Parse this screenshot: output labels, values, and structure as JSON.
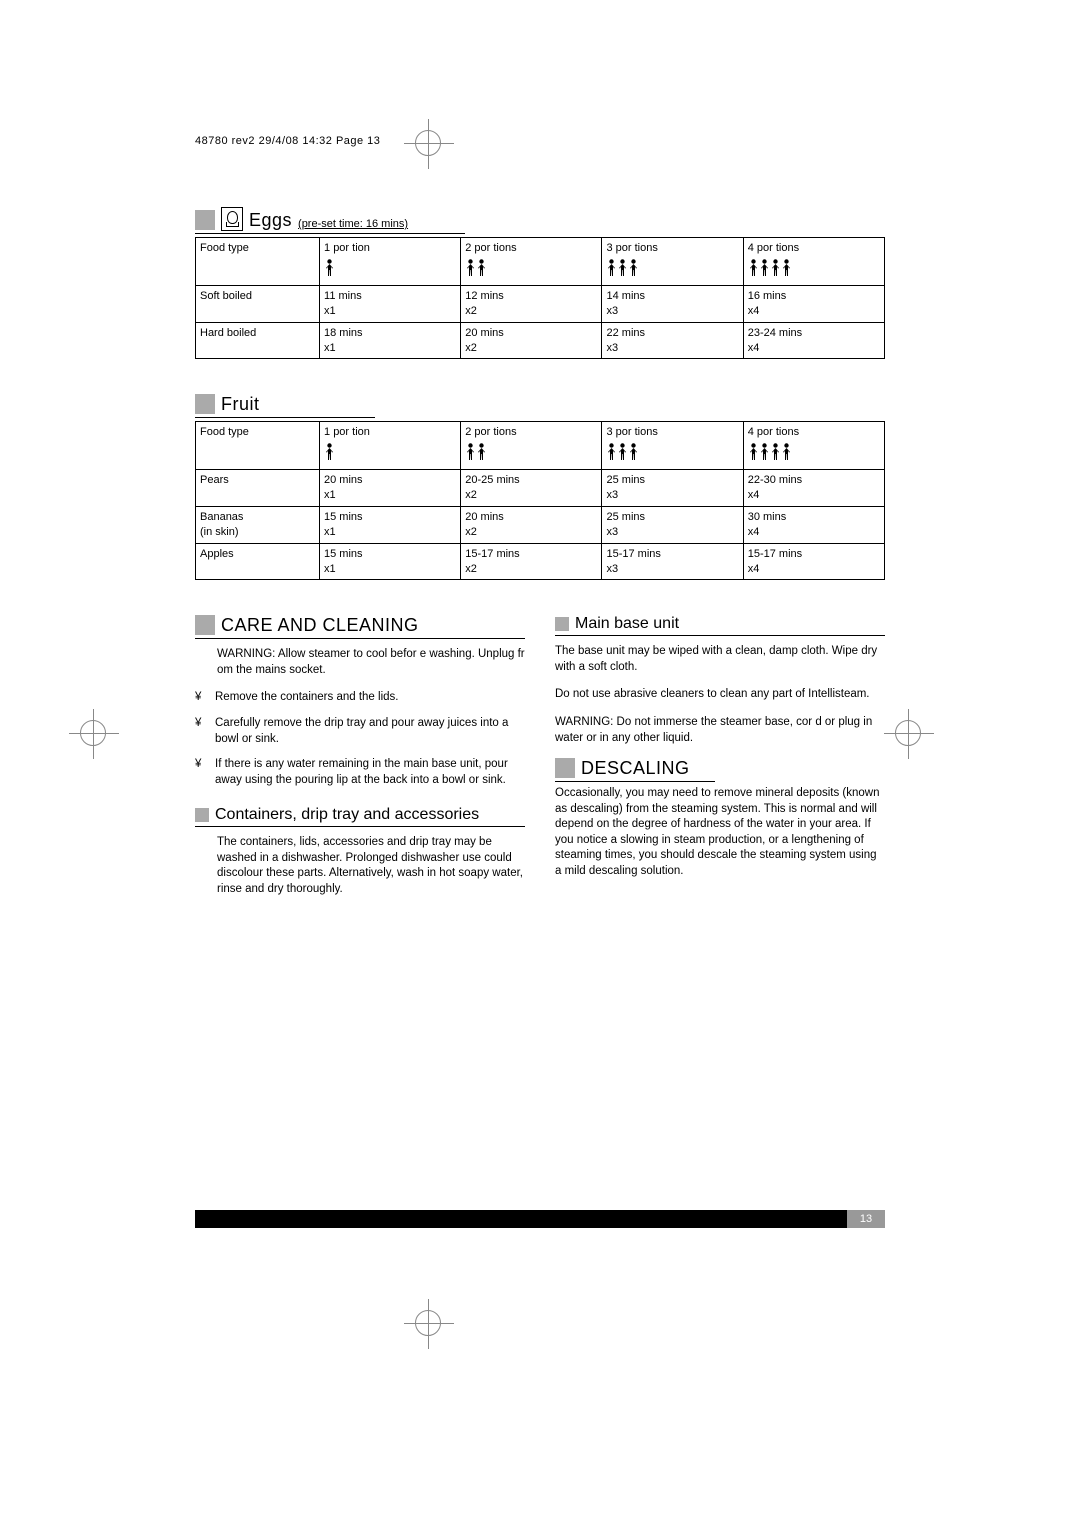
{
  "meta": {
    "header": "48780 rev2 29/4/08 14:32 Page 13"
  },
  "eggs": {
    "title": "Eggs",
    "subtitle": "(pre-set time: 16 mins)",
    "headers": [
      "Food type",
      "1 por tion",
      "2 por tions",
      "3 por tions",
      "4 por tions"
    ],
    "person_counts": [
      1,
      2,
      3,
      4
    ],
    "rows": [
      {
        "food": "Soft boiled",
        "cells": [
          "11 mins\nx1",
          "12 mins\nx2",
          "14 mins\nx3",
          "16 mins\nx4"
        ]
      },
      {
        "food": "Hard boiled",
        "cells": [
          "18 mins\nx1",
          "20 mins\nx2",
          "22 mins\nx3",
          "23-24 mins\nx4"
        ]
      }
    ]
  },
  "fruit": {
    "title": "Fruit",
    "headers": [
      "Food type",
      "1 por tion",
      "2 por tions",
      "3 por tions",
      "4 por tions"
    ],
    "person_counts": [
      1,
      2,
      3,
      4
    ],
    "rows": [
      {
        "food": "Pears",
        "cells": [
          "20 mins\nx1",
          "20-25 mins\nx2",
          "25 mins\nx3",
          "22-30 mins\nx4"
        ]
      },
      {
        "food": "Bananas\n(in skin)",
        "cells": [
          "15 mins\nx1",
          "20 mins\nx2",
          "25 mins\nx3",
          "30 mins\nx4"
        ]
      },
      {
        "food": "Apples",
        "cells": [
          "15 mins\nx1",
          "15-17 mins\nx2",
          "15-17 mins\nx3",
          "15-17 mins\nx4"
        ]
      }
    ]
  },
  "care": {
    "title": "CARE AND CLEANING",
    "warning": "WARNING: Allow steamer to cool befor e washing. Unplug fr om the mains socket.",
    "bullets": [
      "Remove the containers and the lids.",
      "Carefully remove the drip tray and pour away juices into a bowl or sink.",
      "If there is any water remaining in the main base unit, pour away using the pouring lip at the back into a bowl or sink."
    ]
  },
  "containers": {
    "title": "Containers, drip tray and accessories",
    "body": "The containers, lids, accessories and drip tray may be washed in a dishwasher. Prolonged dishwasher use could discolour these parts. Alternatively, wash in hot soapy water, rinse and dry thoroughly."
  },
  "base": {
    "title": "Main base unit",
    "p1": "The base unit may be wiped with a clean, damp cloth. Wipe dry with a soft cloth.",
    "p2": "Do not use abrasive cleaners to clean any part of Intellisteam.",
    "p3": "WARNING: Do not immerse the steamer base, cor d or plug in water or in any other liquid."
  },
  "descaling": {
    "title": "DESCALING",
    "body": "Occasionally, you may need to remove mineral deposits (known as descaling) from the steaming system. This is normal and will depend on the degree of hardness of the water in your area. If you notice a slowing in steam production, or a lengthening of steaming times, you should descale the steaming system using a mild descaling solution."
  },
  "footer": {
    "page": "13"
  },
  "style": {
    "person_glyph": "🚹",
    "bullet_glyph": "¥",
    "colors": {
      "grey_box": "#aaaaaa",
      "black": "#000000",
      "page_num_bg": "#999999"
    },
    "fonts": {
      "body_pt": 11.5,
      "heading_pt": 18,
      "table_pt": 11
    }
  }
}
